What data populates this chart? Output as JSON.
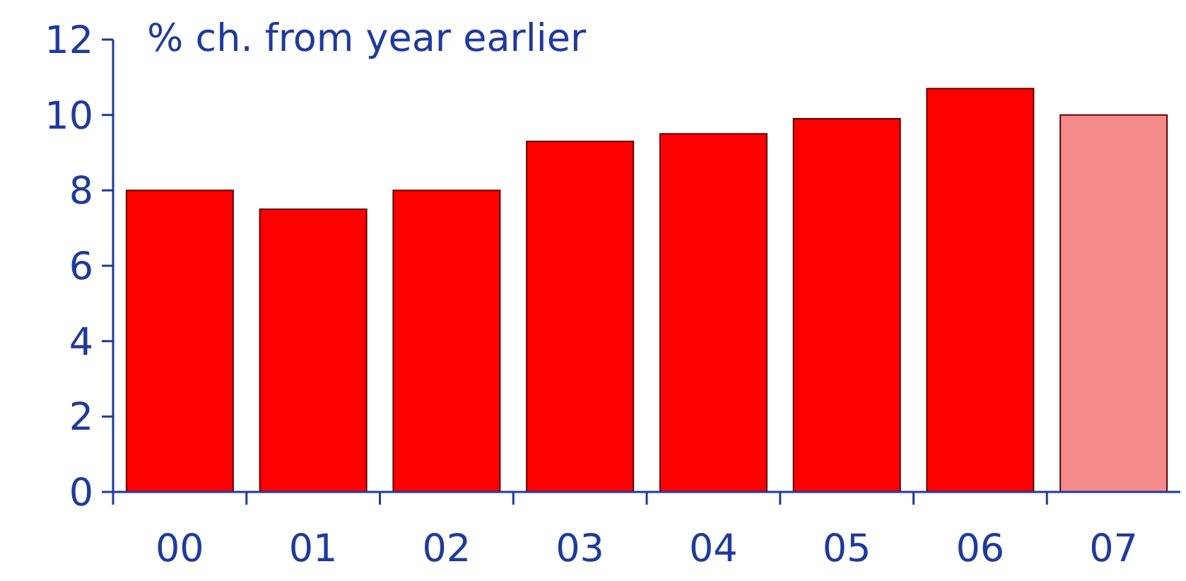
{
  "chart_data": {
    "type": "bar",
    "title": "% ch. from year earlier",
    "categories": [
      "00",
      "01",
      "02",
      "03",
      "04",
      "05",
      "06",
      "07"
    ],
    "values": [
      8.0,
      7.5,
      8.0,
      9.3,
      9.5,
      9.9,
      10.7,
      10.0
    ],
    "colors": [
      "#ff0000",
      "#ff0000",
      "#ff0000",
      "#ff0000",
      "#ff0000",
      "#ff0000",
      "#ff0000",
      "#f58a8a"
    ],
    "ylim": [
      0,
      12
    ],
    "yticks": [
      0,
      2,
      4,
      6,
      8,
      10,
      12
    ],
    "grid": false
  }
}
